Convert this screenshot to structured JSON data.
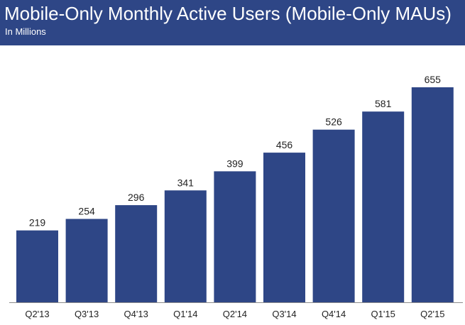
{
  "header": {
    "title": "Mobile-Only Monthly Active Users (Mobile-Only MAUs)",
    "subtitle": "In Millions"
  },
  "colors": {
    "header_bg": "#2e4686",
    "bar": "#2e4686",
    "axis": "#8c8c8c",
    "text": "#222222"
  },
  "chart_data": {
    "type": "bar",
    "title": "Mobile-Only Monthly Active Users (Mobile-Only MAUs)",
    "subtitle": "In Millions",
    "categories": [
      "Q2'13",
      "Q3'13",
      "Q4'13",
      "Q1'14",
      "Q2'14",
      "Q3'14",
      "Q4'14",
      "Q1'15",
      "Q2'15"
    ],
    "values": [
      219,
      254,
      296,
      341,
      399,
      456,
      526,
      581,
      655
    ],
    "data_labels": [
      "219",
      "254",
      "296",
      "341",
      "399",
      "456",
      "526",
      "581",
      "655"
    ],
    "xlabel": "",
    "ylabel": "",
    "ylim": [
      0,
      655
    ],
    "grid": false,
    "legend": "none"
  }
}
